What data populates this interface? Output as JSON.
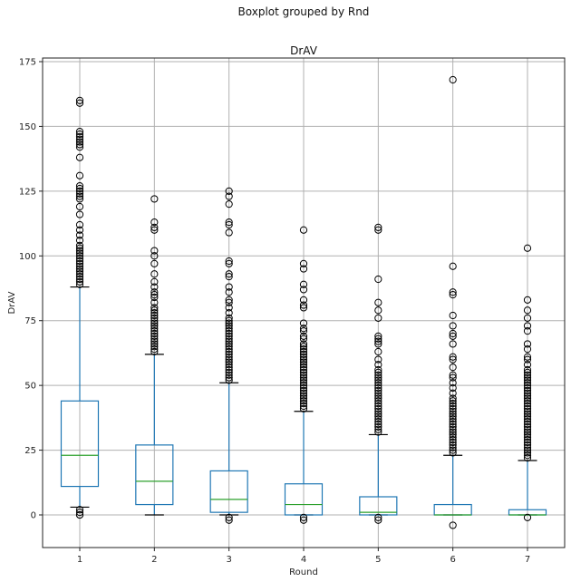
{
  "chart_data": {
    "type": "boxplot",
    "suptitle": "Boxplot grouped by Rnd",
    "title": "DrAV",
    "xlabel": "Round",
    "ylabel": "DrAV",
    "ylim": [
      -13,
      177
    ],
    "yticks": [
      0,
      25,
      50,
      75,
      100,
      125,
      150,
      175
    ],
    "grid": true,
    "categories": [
      "1",
      "2",
      "3",
      "4",
      "5",
      "6",
      "7"
    ],
    "boxes": [
      {
        "whislo": 3,
        "q1": 11,
        "med": 23,
        "q3": 44,
        "whishi": 88,
        "fliers": [
          160,
          159,
          148,
          147,
          146,
          145,
          144,
          143,
          142,
          138,
          131,
          127,
          126,
          125,
          124,
          123,
          122,
          119,
          116,
          112,
          110,
          108,
          106,
          104,
          103,
          102,
          101,
          100,
          99,
          98,
          97,
          96,
          95,
          94,
          93,
          92,
          91,
          90,
          89,
          0,
          1,
          2,
          0
        ]
      },
      {
        "whislo": 0,
        "q1": 4,
        "med": 13,
        "q3": 27,
        "whishi": 62,
        "fliers": [
          122,
          113,
          111,
          110,
          102,
          100,
          97,
          93,
          90,
          88,
          86,
          85,
          84,
          82,
          80,
          79,
          78,
          77,
          76,
          75,
          74,
          73,
          72,
          71,
          70,
          69,
          68,
          67,
          66,
          65,
          64,
          63
        ]
      },
      {
        "whislo": 0,
        "q1": 1,
        "med": 6,
        "q3": 17,
        "whishi": 51,
        "fliers": [
          125,
          123,
          120,
          113,
          112,
          109,
          98,
          97,
          93,
          92,
          88,
          86,
          83,
          82,
          80,
          78,
          76,
          75,
          74,
          73,
          72,
          71,
          70,
          69,
          68,
          67,
          66,
          65,
          64,
          63,
          62,
          61,
          60,
          59,
          58,
          57,
          56,
          55,
          54,
          53,
          52,
          -1,
          -2
        ]
      },
      {
        "whislo": 0,
        "q1": 0,
        "med": 4,
        "q3": 12,
        "whishi": 40,
        "fliers": [
          110,
          97,
          95,
          89,
          87,
          83,
          81,
          80,
          74,
          72,
          71,
          69,
          68,
          66,
          65,
          64,
          63,
          62,
          61,
          60,
          59,
          58,
          57,
          56,
          55,
          54,
          53,
          52,
          51,
          50,
          49,
          48,
          47,
          46,
          45,
          44,
          43,
          42,
          41,
          -1,
          -2
        ]
      },
      {
        "whislo": 0,
        "q1": 0,
        "med": 1,
        "q3": 7,
        "whishi": 31,
        "fliers": [
          111,
          110,
          91,
          82,
          79,
          76,
          69,
          68,
          67,
          66,
          63,
          60,
          58,
          56,
          55,
          54,
          53,
          52,
          51,
          50,
          49,
          48,
          47,
          46,
          45,
          44,
          43,
          42,
          41,
          40,
          39,
          38,
          37,
          36,
          35,
          34,
          33,
          32,
          -1,
          -2
        ]
      },
      {
        "whislo": 0,
        "q1": 0,
        "med": 0,
        "q3": 4,
        "whishi": 23,
        "fliers": [
          168,
          96,
          86,
          85,
          77,
          73,
          70,
          69,
          66,
          61,
          60,
          57,
          54,
          53,
          51,
          49,
          47,
          45,
          44,
          43,
          42,
          41,
          40,
          39,
          38,
          37,
          36,
          35,
          34,
          33,
          32,
          31,
          30,
          29,
          28,
          27,
          26,
          25,
          24,
          -4
        ]
      },
      {
        "whislo": 0,
        "q1": 0,
        "med": 0,
        "q3": 2,
        "whishi": 21,
        "fliers": [
          103,
          83,
          79,
          76,
          73,
          71,
          66,
          64,
          61,
          60,
          58,
          56,
          55,
          54,
          53,
          52,
          51,
          50,
          49,
          48,
          47,
          46,
          45,
          44,
          43,
          42,
          41,
          40,
          39,
          38,
          37,
          36,
          35,
          34,
          33,
          32,
          31,
          30,
          29,
          28,
          27,
          26,
          25,
          24,
          23,
          22,
          -1
        ]
      }
    ],
    "colors": {
      "box": "#1f77b4",
      "median": "#2ca02c",
      "cap": "#000000",
      "flier": "#000000",
      "grid": "#b0b0b0"
    }
  }
}
